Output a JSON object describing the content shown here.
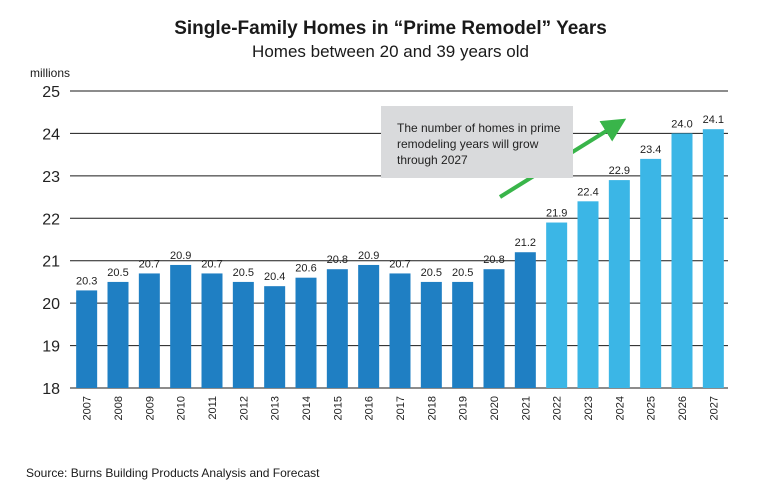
{
  "title": "Single-Family Homes in “Prime Remodel” Years",
  "subtitle": "Homes between 20 and 39 years old",
  "unit_label": "millions",
  "source": "Source: Burns Building Products Analysis and Forecast",
  "callout": "The number of homes in prime remodeling years will grow through 2027",
  "colors": {
    "actual": "#1f7fc3",
    "forecast": "#3bb6e6",
    "arrow": "#39b54a",
    "grid": "#1a1a1a",
    "callout_bg": "#d9dadc"
  },
  "chart_data": {
    "type": "bar",
    "title": "Single-Family Homes in “Prime Remodel” Years",
    "subtitle": "Homes between 20 and 39 years old",
    "ylabel": "millions",
    "ylim": [
      18,
      25
    ],
    "yticks": [
      18,
      19,
      20,
      21,
      22,
      23,
      24,
      25
    ],
    "grid": true,
    "categories": [
      "2007",
      "2008",
      "2009",
      "2010",
      "2011",
      "2012",
      "2013",
      "2014",
      "2015",
      "2016",
      "2017",
      "2018",
      "2019",
      "2020",
      "2021",
      "2022",
      "2023",
      "2024",
      "2025",
      "2026",
      "2027"
    ],
    "values": [
      20.3,
      20.5,
      20.7,
      20.9,
      20.7,
      20.5,
      20.4,
      20.6,
      20.8,
      20.9,
      20.7,
      20.5,
      20.5,
      20.8,
      21.2,
      21.9,
      22.4,
      22.9,
      23.4,
      24.0,
      24.1
    ],
    "data_labels": [
      "20.3",
      "20.5",
      "20.7",
      "20.9",
      "20.7",
      "20.5",
      "20.4",
      "20.6",
      "20.8",
      "20.9",
      "20.7",
      "20.5",
      "20.5",
      "20.8",
      "21.2",
      "21.9",
      "22.4",
      "22.9",
      "23.4",
      "24.0",
      "24.1"
    ],
    "forecast_start": "2022"
  }
}
